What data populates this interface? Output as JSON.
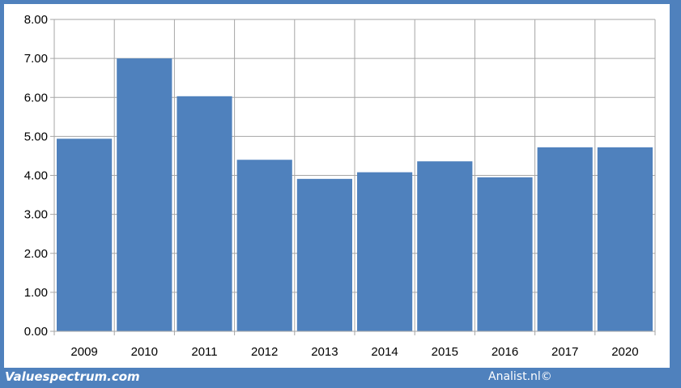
{
  "chart_data": {
    "type": "bar",
    "categories": [
      "2009",
      "2010",
      "2011",
      "2012",
      "2013",
      "2014",
      "2015",
      "2016",
      "2017",
      "2020"
    ],
    "values": [
      4.94,
      7.0,
      6.03,
      4.4,
      3.91,
      4.08,
      4.36,
      3.95,
      4.72,
      4.72
    ],
    "ylim": [
      0,
      8
    ],
    "yticks": [
      "0.00",
      "1.00",
      "2.00",
      "3.00",
      "4.00",
      "5.00",
      "6.00",
      "7.00",
      "8.00"
    ],
    "grid": true,
    "title": "",
    "xlabel": "",
    "ylabel": "",
    "bar_color": "#4f81bd",
    "grid_color": "#a6a6a6"
  },
  "footer": {
    "left_text": "Valuespectrum.com",
    "right_text": "Analist.nl©"
  },
  "colors": {
    "frame": "#4f81bd",
    "footer_text": "#ffffff"
  }
}
